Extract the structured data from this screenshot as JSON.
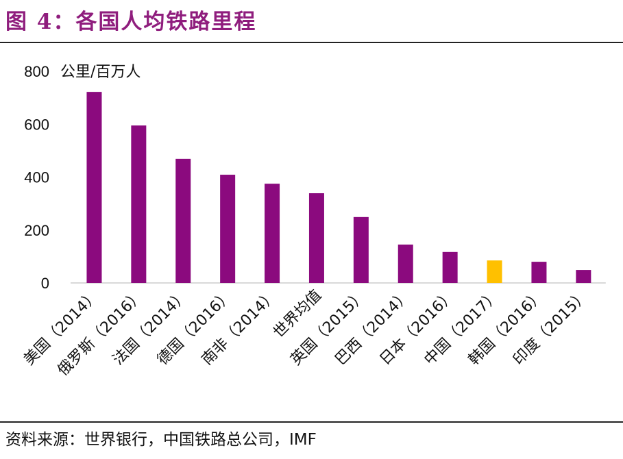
{
  "title": "图 4：各国人均铁路里程",
  "source": "资料来源：世界银行，中国铁路总公司，IMF",
  "chart_data": {
    "type": "bar",
    "ylabel": "公里/百万人",
    "ylim": [
      0,
      800
    ],
    "yticks": [
      0,
      200,
      400,
      600,
      800
    ],
    "grid": false,
    "categories": [
      "美国（2014）",
      "俄罗斯（2016）",
      "法国（2014）",
      "德国（2016）",
      "南非（2014）",
      "世界均值",
      "英国（2015）",
      "巴西（2014）",
      "日本（2016）",
      "中国（2017）",
      "韩国（2016）",
      "印度（2015）"
    ],
    "values": [
      722,
      595,
      469,
      409,
      375,
      339,
      249,
      145,
      117,
      85,
      80,
      49
    ],
    "colors": {
      "default": "#8b0a7e",
      "highlight": "#ffc000"
    },
    "highlight": "中国（2017）"
  }
}
